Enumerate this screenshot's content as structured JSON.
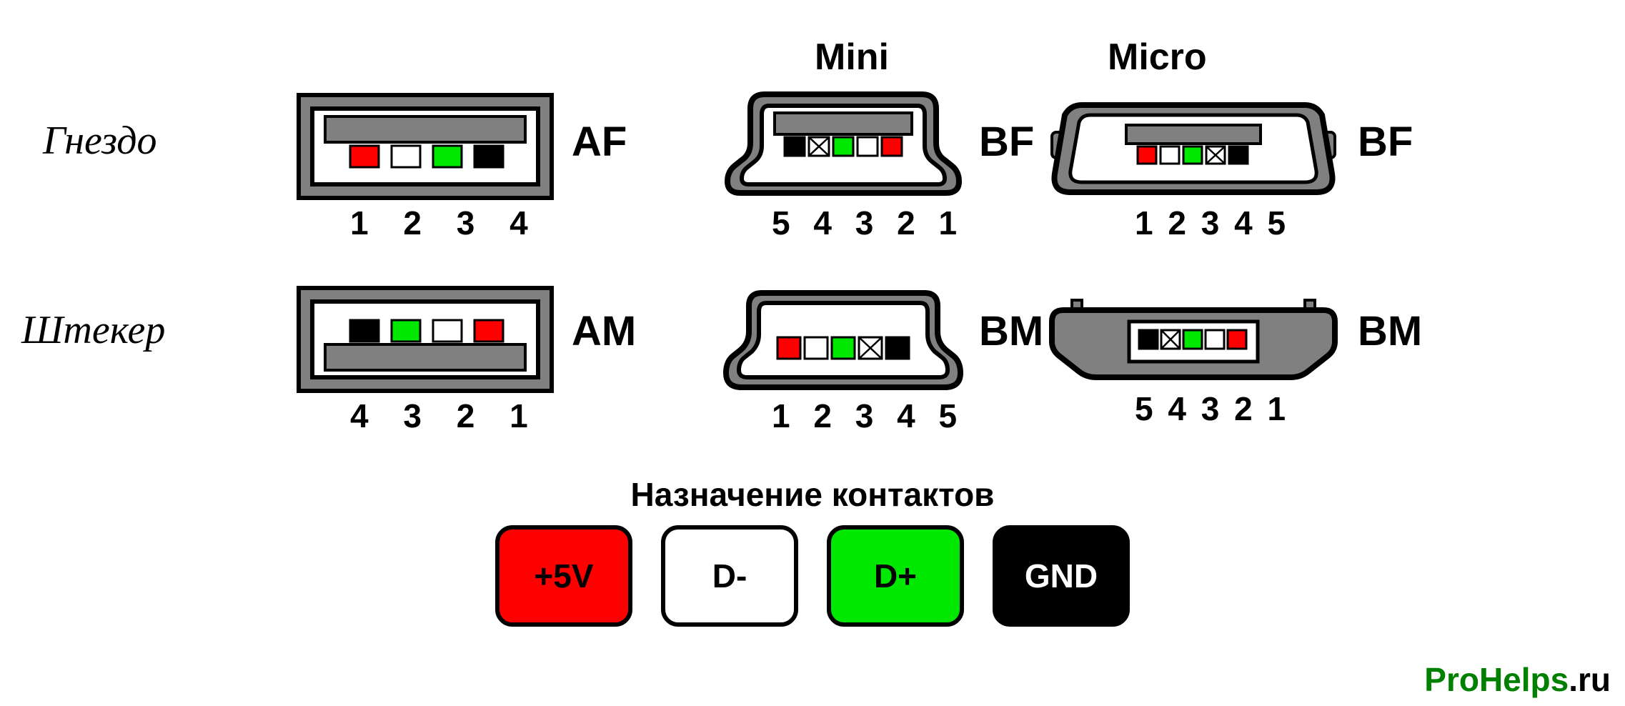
{
  "colors": {
    "red": "#ff0000",
    "white": "#ffffff",
    "green": "#00e700",
    "black": "#000000",
    "gray": "#808080",
    "outline": "#000000",
    "grayStroke": "#5a5a5a"
  },
  "headers": {
    "mini": "Mini",
    "micro": "Micro"
  },
  "rows": {
    "socket": "Гнездо",
    "plug": "Штекер"
  },
  "connectors": {
    "af": {
      "label": "AF",
      "pins": "1 2 3 4",
      "pinColors": [
        "red",
        "white",
        "green",
        "black"
      ]
    },
    "am": {
      "label": "AM",
      "pins": "4 3 2 1",
      "pinColors": [
        "black",
        "green",
        "white",
        "red"
      ]
    },
    "mini_bf": {
      "label": "BF",
      "pins": "5 4 3 2 1",
      "pinColors": [
        "black",
        "x",
        "green",
        "white",
        "red"
      ]
    },
    "mini_bm": {
      "label": "BM",
      "pins": "1 2 3 4 5",
      "pinColors": [
        "red",
        "white",
        "green",
        "x",
        "black"
      ]
    },
    "micro_bf": {
      "label": "BF",
      "pins": "1 2 3 4 5",
      "pinColors": [
        "red",
        "white",
        "green",
        "x",
        "black"
      ]
    },
    "micro_bm": {
      "label": "BM",
      "pins": "5 4 3 2 1",
      "pinColors": [
        "black",
        "x",
        "green",
        "white",
        "red"
      ]
    }
  },
  "legend": {
    "title": "Назначение контактов",
    "items": [
      {
        "label": "+5V",
        "fill": "red",
        "text": "#000000"
      },
      {
        "label": "D-",
        "fill": "white",
        "text": "#000000"
      },
      {
        "label": "D+",
        "fill": "green",
        "text": "#000000"
      },
      {
        "label": "GND",
        "fill": "black",
        "text": "#ffffff"
      }
    ]
  },
  "watermark": {
    "pre": "ProHelps",
    "post": ".ru",
    "accent": "#008000"
  }
}
